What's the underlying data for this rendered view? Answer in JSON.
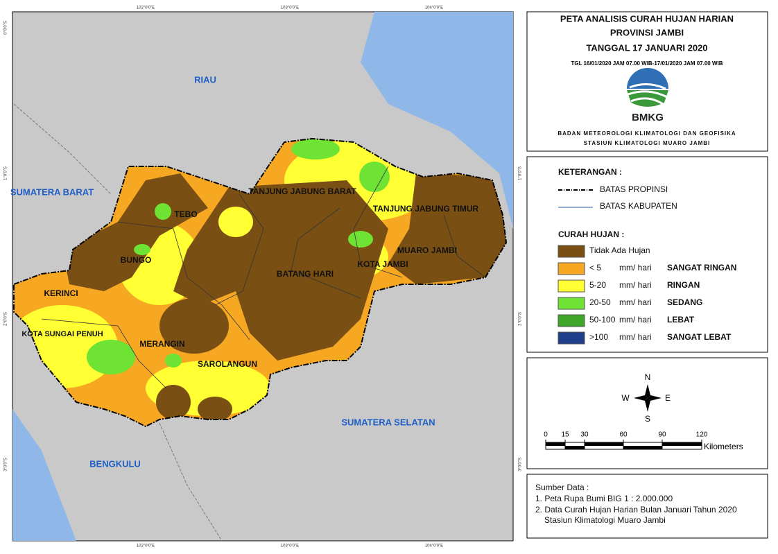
{
  "map": {
    "neighbors": [
      "RIAU",
      "SUMATERA BARAT",
      "SUMATERA SELATAN",
      "BENGKULU"
    ],
    "districts": [
      "TANJUNG JABUNG BARAT",
      "TANJUNG JABUNG TIMUR",
      "TEBO",
      "BUNGO",
      "MUARO JAMBI",
      "KOTA JAMBI",
      "BATANG HARI",
      "KERINCI",
      "KOTA SUNGAI PENUH",
      "MERANGIN",
      "SAROLANGUN"
    ],
    "longitudes": [
      "102°0'0\"E",
      "103°0'0\"E",
      "104°0'0\"E"
    ],
    "latitudes": [
      "0°0'0\"S",
      "1°0'0\"S",
      "2°0'0\"S",
      "3°0'0\"S"
    ]
  },
  "header": {
    "title": [
      "PETA ANALISIS CURAH HUJAN HARIAN",
      "PROVINSI JAMBI",
      "TANGGAL 17 JANUARI 2020"
    ],
    "period": "TGL 16/01/2020 JAM 07.00 WIB-17/01/2020 JAM 07.00 WIB",
    "logo": "BMKG",
    "agency": [
      "BADAN METEOROLOGI KLIMATOLOGI DAN GEOFISIKA",
      "STASIUN KLIMATOLOGI MUARO JAMBI"
    ]
  },
  "legend": {
    "heading": "KETERANGAN :",
    "boundaries": [
      "BATAS PROPINSI",
      "BATAS KABUPATEN"
    ],
    "rain_heading": "CURAH HUJAN :",
    "classes": [
      {
        "range": "Tidak Ada Hujan",
        "color": "#7a4f14"
      },
      {
        "range": "< 5",
        "unit": "mm/ hari",
        "category": "SANGAT RINGAN",
        "color": "#f7a823"
      },
      {
        "range": "5-20",
        "unit": "mm/ hari",
        "category": "RINGAN",
        "color": "#ffff33"
      },
      {
        "range": "20-50",
        "unit": "mm/ hari",
        "category": "SEDANG",
        "color": "#6fe333"
      },
      {
        "range": "50-100",
        "unit": "mm/ hari",
        "category": "LEBAT",
        "color": "#3ea72a"
      },
      {
        "range": ">100",
        "unit": "mm/ hari",
        "category": "SANGAT LEBAT",
        "color": "#1f3e8c"
      }
    ]
  },
  "compass": {
    "n": "N",
    "s": "S",
    "e": "E",
    "w": "W"
  },
  "scale": {
    "ticks": [
      "0",
      "15",
      "30",
      "60",
      "90",
      "120"
    ],
    "unit": "Kilometers"
  },
  "sources": {
    "heading": "Sumber Data :",
    "items": [
      "1. Peta Rupa Bumi BIG 1 : 2.000.000",
      "2. Data Curah Hujan Harian Bulan Januari Tahun 2020",
      "Stasiun Klimatologi Muaro Jambi"
    ]
  }
}
